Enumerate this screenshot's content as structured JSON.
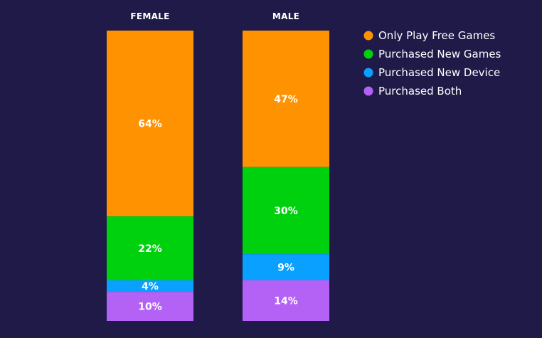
{
  "chart_data": {
    "type": "bar",
    "stacked": true,
    "categories": [
      "FEMALE",
      "MALE"
    ],
    "series": [
      {
        "name": "Only Play Free Games",
        "color": "#ff9200",
        "values": [
          64,
          47
        ],
        "labels": [
          "64%",
          "47%"
        ]
      },
      {
        "name": "Purchased New Games",
        "color": "#00d10f",
        "values": [
          22,
          30
        ],
        "labels": [
          "22%",
          "30%"
        ]
      },
      {
        "name": "Purchased New Device",
        "color": "#0aa0ff",
        "values": [
          4,
          9
        ],
        "labels": [
          "4%",
          "9%"
        ]
      },
      {
        "name": "Purchased Both",
        "color": "#b462f5",
        "values": [
          10,
          14
        ],
        "labels": [
          "10%",
          "14%"
        ]
      }
    ],
    "ylim": [
      0,
      100
    ],
    "legend_position": "top-right",
    "grid": false
  },
  "colors": {
    "background": "#1f1a48",
    "text": "#ffffff"
  }
}
